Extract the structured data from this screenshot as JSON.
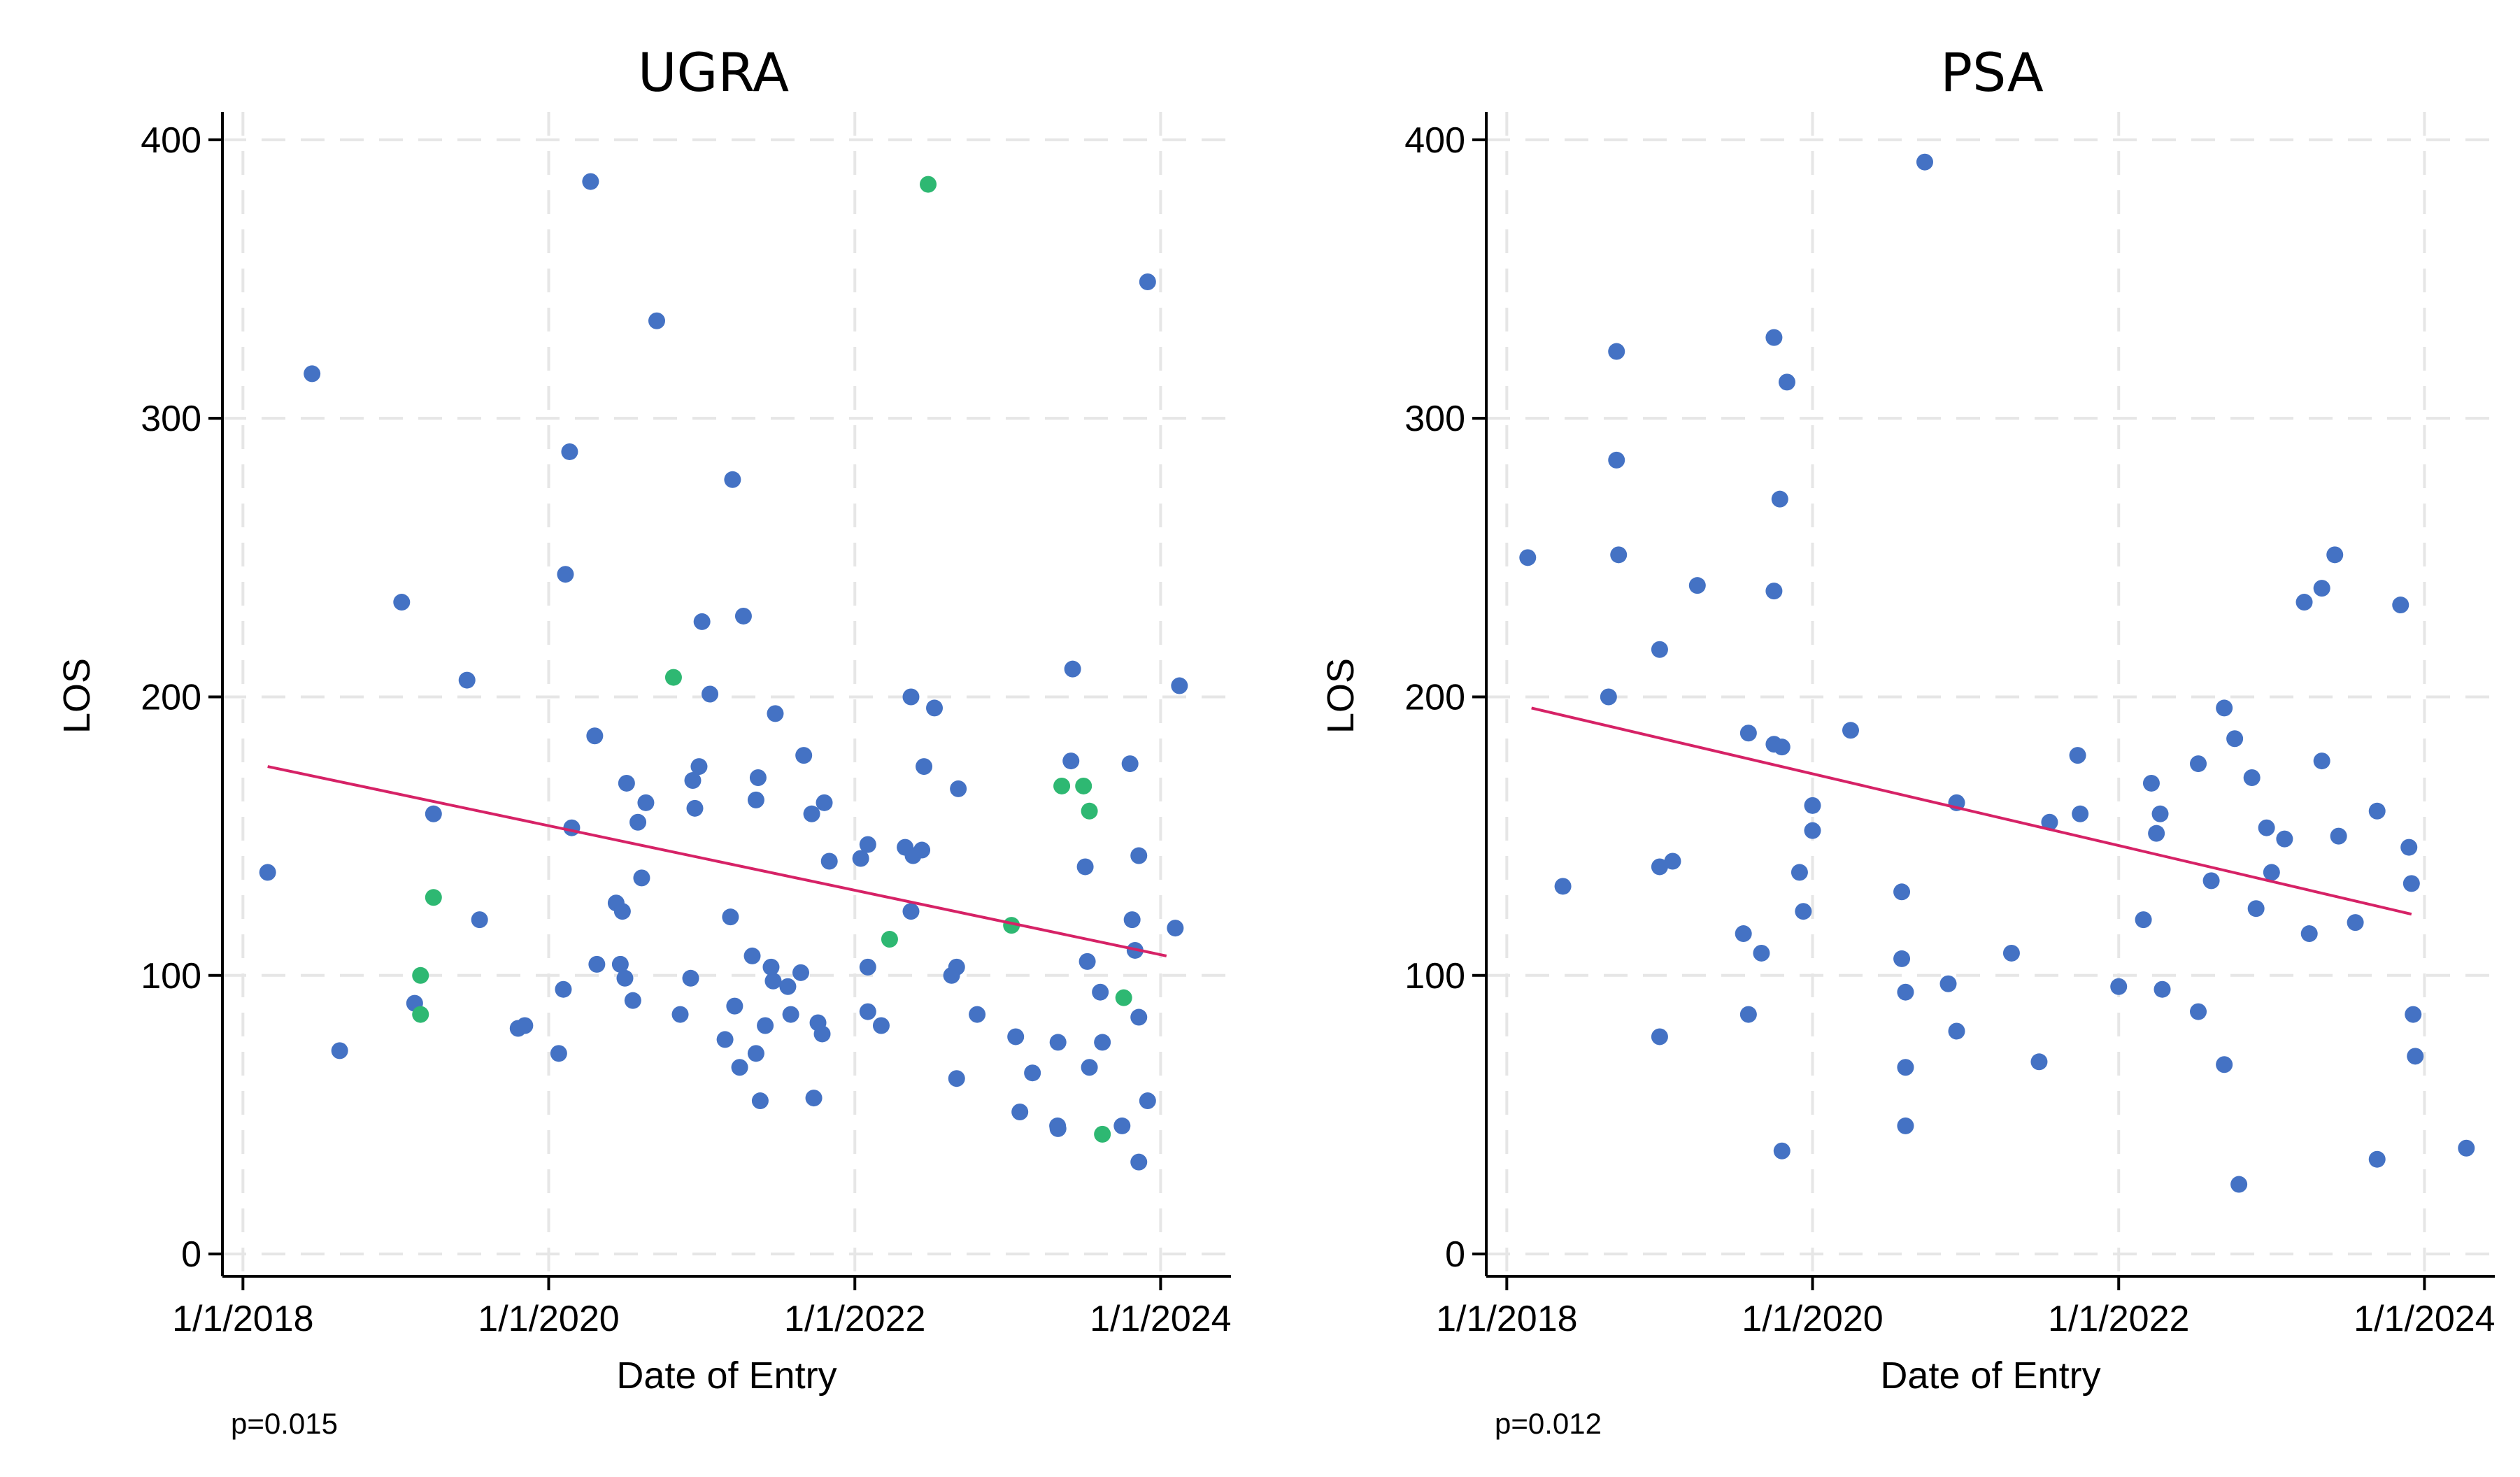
{
  "chart_data": [
    {
      "type": "scatter",
      "title": "UGRA",
      "xlabel": "Date of Entry",
      "ylabel": "LOS",
      "xlim": [
        "2017-11-13",
        "2024-06-17"
      ],
      "ylim": [
        -8,
        410
      ],
      "x_ticks": [
        {
          "date": "2018-01-01",
          "label": "1/1/2018"
        },
        {
          "date": "2020-01-01",
          "label": "1/1/2020"
        },
        {
          "date": "2022-01-01",
          "label": "1/1/2022"
        },
        {
          "date": "2024-01-01",
          "label": "1/1/2024"
        }
      ],
      "y_ticks": [
        0,
        100,
        200,
        300,
        400
      ],
      "grid": true,
      "annotation": "p=0.015",
      "colors": {
        "blue": "#4472C4",
        "green": "#2EB872",
        "fit_line": "#D62266"
      },
      "fit_line": {
        "x": [
          "2018-03-01",
          "2024-01-15"
        ],
        "y": [
          175,
          107
        ]
      },
      "series": [
        {
          "color": "#4472C4",
          "points": [
            {
              "x": "2018-03-01",
              "y": 137
            },
            {
              "x": "2018-06-15",
              "y": 316
            },
            {
              "x": "2018-08-20",
              "y": 73
            },
            {
              "x": "2019-01-15",
              "y": 234
            },
            {
              "x": "2019-02-15",
              "y": 90
            },
            {
              "x": "2019-04-01",
              "y": 158
            },
            {
              "x": "2019-06-20",
              "y": 206
            },
            {
              "x": "2019-07-20",
              "y": 120
            },
            {
              "x": "2019-10-20",
              "y": 81
            },
            {
              "x": "2019-11-05",
              "y": 82
            },
            {
              "x": "2020-01-25",
              "y": 72
            },
            {
              "x": "2020-02-05",
              "y": 95
            },
            {
              "x": "2020-02-10",
              "y": 244
            },
            {
              "x": "2020-02-20",
              "y": 288
            },
            {
              "x": "2020-02-25",
              "y": 153
            },
            {
              "x": "2020-04-10",
              "y": 385
            },
            {
              "x": "2020-04-20",
              "y": 186
            },
            {
              "x": "2020-04-25",
              "y": 104
            },
            {
              "x": "2020-06-10",
              "y": 126
            },
            {
              "x": "2020-06-20",
              "y": 104
            },
            {
              "x": "2020-06-25",
              "y": 123
            },
            {
              "x": "2020-07-01",
              "y": 99
            },
            {
              "x": "2020-07-05",
              "y": 169
            },
            {
              "x": "2020-07-20",
              "y": 91
            },
            {
              "x": "2020-08-01",
              "y": 155
            },
            {
              "x": "2020-08-10",
              "y": 135
            },
            {
              "x": "2020-08-20",
              "y": 162
            },
            {
              "x": "2020-09-15",
              "y": 335
            },
            {
              "x": "2020-11-10",
              "y": 86
            },
            {
              "x": "2020-12-05",
              "y": 99
            },
            {
              "x": "2020-12-10",
              "y": 170
            },
            {
              "x": "2020-12-15",
              "y": 160
            },
            {
              "x": "2020-12-25",
              "y": 175
            },
            {
              "x": "2021-01-01",
              "y": 227
            },
            {
              "x": "2021-01-20",
              "y": 201
            },
            {
              "x": "2021-02-25",
              "y": 77
            },
            {
              "x": "2021-03-10",
              "y": 121
            },
            {
              "x": "2021-03-15",
              "y": 278
            },
            {
              "x": "2021-03-20",
              "y": 89
            },
            {
              "x": "2021-04-01",
              "y": 67
            },
            {
              "x": "2021-04-10",
              "y": 229
            },
            {
              "x": "2021-05-01",
              "y": 107
            },
            {
              "x": "2021-05-10",
              "y": 72
            },
            {
              "x": "2021-05-10",
              "y": 163
            },
            {
              "x": "2021-05-15",
              "y": 171
            },
            {
              "x": "2021-05-20",
              "y": 55
            },
            {
              "x": "2021-06-01",
              "y": 82
            },
            {
              "x": "2021-06-15",
              "y": 103
            },
            {
              "x": "2021-06-20",
              "y": 98
            },
            {
              "x": "2021-06-25",
              "y": 194
            },
            {
              "x": "2021-07-25",
              "y": 96
            },
            {
              "x": "2021-08-01",
              "y": 86
            },
            {
              "x": "2021-08-25",
              "y": 101
            },
            {
              "x": "2021-09-01",
              "y": 179
            },
            {
              "x": "2021-09-20",
              "y": 158
            },
            {
              "x": "2021-09-25",
              "y": 56
            },
            {
              "x": "2021-10-05",
              "y": 83
            },
            {
              "x": "2021-10-15",
              "y": 79
            },
            {
              "x": "2021-10-20",
              "y": 162
            },
            {
              "x": "2021-11-01",
              "y": 141
            },
            {
              "x": "2022-01-15",
              "y": 142
            },
            {
              "x": "2022-02-01",
              "y": 147
            },
            {
              "x": "2022-02-01",
              "y": 103
            },
            {
              "x": "2022-02-01",
              "y": 87
            },
            {
              "x": "2022-03-05",
              "y": 82
            },
            {
              "x": "2022-05-01",
              "y": 146
            },
            {
              "x": "2022-05-15",
              "y": 200
            },
            {
              "x": "2022-05-15",
              "y": 123
            },
            {
              "x": "2022-05-20",
              "y": 143
            },
            {
              "x": "2022-06-10",
              "y": 145
            },
            {
              "x": "2022-06-15",
              "y": 175
            },
            {
              "x": "2022-07-10",
              "y": 196
            },
            {
              "x": "2022-08-20",
              "y": 100
            },
            {
              "x": "2022-09-01",
              "y": 103
            },
            {
              "x": "2022-09-01",
              "y": 63
            },
            {
              "x": "2022-09-05",
              "y": 167
            },
            {
              "x": "2022-10-20",
              "y": 86
            },
            {
              "x": "2023-01-20",
              "y": 78
            },
            {
              "x": "2023-01-30",
              "y": 51
            },
            {
              "x": "2023-03-01",
              "y": 65
            },
            {
              "x": "2023-04-30",
              "y": 46
            },
            {
              "x": "2023-05-01",
              "y": 45
            },
            {
              "x": "2023-05-01",
              "y": 76
            },
            {
              "x": "2023-06-01",
              "y": 177
            },
            {
              "x": "2023-06-05",
              "y": 210
            },
            {
              "x": "2023-07-05",
              "y": 139
            },
            {
              "x": "2023-07-10",
              "y": 105
            },
            {
              "x": "2023-07-15",
              "y": 67
            },
            {
              "x": "2023-08-10",
              "y": 94
            },
            {
              "x": "2023-08-15",
              "y": 76
            },
            {
              "x": "2023-10-01",
              "y": 46
            },
            {
              "x": "2023-10-20",
              "y": 176
            },
            {
              "x": "2023-10-25",
              "y": 120
            },
            {
              "x": "2023-11-01",
              "y": 109
            },
            {
              "x": "2023-11-10",
              "y": 143
            },
            {
              "x": "2023-11-10",
              "y": 85
            },
            {
              "x": "2023-11-10",
              "y": 33
            },
            {
              "x": "2023-12-01",
              "y": 349
            },
            {
              "x": "2023-12-01",
              "y": 55
            },
            {
              "x": "2024-02-05",
              "y": 117
            },
            {
              "x": "2024-02-15",
              "y": 204
            }
          ]
        },
        {
          "color": "#2EB872",
          "points": [
            {
              "x": "2019-03-01",
              "y": 100
            },
            {
              "x": "2019-03-01",
              "y": 86
            },
            {
              "x": "2019-04-01",
              "y": 128
            },
            {
              "x": "2020-10-25",
              "y": 207
            },
            {
              "x": "2022-03-25",
              "y": 113
            },
            {
              "x": "2022-06-25",
              "y": 384
            },
            {
              "x": "2023-01-10",
              "y": 118
            },
            {
              "x": "2023-05-10",
              "y": 168
            },
            {
              "x": "2023-07-01",
              "y": 168
            },
            {
              "x": "2023-07-15",
              "y": 159
            },
            {
              "x": "2023-08-15",
              "y": 43
            },
            {
              "x": "2023-10-05",
              "y": 92
            }
          ]
        }
      ]
    },
    {
      "type": "scatter",
      "title": "PSA",
      "xlabel": "Date of Entry",
      "ylabel": "LOS",
      "xlim": [
        "2017-11-13",
        "2024-06-17"
      ],
      "ylim": [
        -8,
        410
      ],
      "x_ticks": [
        {
          "date": "2018-01-01",
          "label": "1/1/2018"
        },
        {
          "date": "2020-01-01",
          "label": "1/1/2020"
        },
        {
          "date": "2022-01-01",
          "label": "1/1/2022"
        },
        {
          "date": "2024-01-01",
          "label": "1/1/2024"
        }
      ],
      "y_ticks": [
        0,
        100,
        200,
        300,
        400
      ],
      "grid": true,
      "annotation": "p=0.012",
      "colors": {
        "blue": "#4472C4",
        "fit_line": "#D62266"
      },
      "fit_line": {
        "x": [
          "2018-03-01",
          "2023-12-01"
        ],
        "y": [
          196,
          122
        ]
      },
      "series": [
        {
          "color": "#4472C4",
          "points": [
            {
              "x": "2018-02-20",
              "y": 250
            },
            {
              "x": "2018-05-15",
              "y": 132
            },
            {
              "x": "2018-09-01",
              "y": 200
            },
            {
              "x": "2018-09-20",
              "y": 324
            },
            {
              "x": "2018-09-20",
              "y": 285
            },
            {
              "x": "2018-09-25",
              "y": 251
            },
            {
              "x": "2019-01-01",
              "y": 217
            },
            {
              "x": "2019-01-01",
              "y": 139
            },
            {
              "x": "2019-01-01",
              "y": 78
            },
            {
              "x": "2019-02-01",
              "y": 141
            },
            {
              "x": "2019-04-01",
              "y": 240
            },
            {
              "x": "2019-07-20",
              "y": 115
            },
            {
              "x": "2019-08-01",
              "y": 187
            },
            {
              "x": "2019-08-01",
              "y": 86
            },
            {
              "x": "2019-09-01",
              "y": 108
            },
            {
              "x": "2019-10-01",
              "y": 329
            },
            {
              "x": "2019-10-01",
              "y": 238
            },
            {
              "x": "2019-10-01",
              "y": 183
            },
            {
              "x": "2019-10-15",
              "y": 271
            },
            {
              "x": "2019-10-20",
              "y": 182
            },
            {
              "x": "2019-10-20",
              "y": 37
            },
            {
              "x": "2019-11-01",
              "y": 313
            },
            {
              "x": "2019-12-01",
              "y": 137
            },
            {
              "x": "2019-12-10",
              "y": 123
            },
            {
              "x": "2020-01-01",
              "y": 161
            },
            {
              "x": "2020-01-01",
              "y": 152
            },
            {
              "x": "2020-04-01",
              "y": 188
            },
            {
              "x": "2020-08-01",
              "y": 106
            },
            {
              "x": "2020-08-01",
              "y": 130
            },
            {
              "x": "2020-08-10",
              "y": 94
            },
            {
              "x": "2020-08-10",
              "y": 67
            },
            {
              "x": "2020-08-10",
              "y": 46
            },
            {
              "x": "2020-09-25",
              "y": 392
            },
            {
              "x": "2020-11-20",
              "y": 97
            },
            {
              "x": "2020-12-10",
              "y": 162
            },
            {
              "x": "2020-12-10",
              "y": 80
            },
            {
              "x": "2021-04-20",
              "y": 108
            },
            {
              "x": "2021-06-25",
              "y": 69
            },
            {
              "x": "2021-07-20",
              "y": 155
            },
            {
              "x": "2021-09-25",
              "y": 179
            },
            {
              "x": "2021-10-01",
              "y": 158
            },
            {
              "x": "2022-01-01",
              "y": 96
            },
            {
              "x": "2022-03-01",
              "y": 120
            },
            {
              "x": "2022-03-20",
              "y": 169
            },
            {
              "x": "2022-04-01",
              "y": 151
            },
            {
              "x": "2022-04-10",
              "y": 158
            },
            {
              "x": "2022-04-15",
              "y": 95
            },
            {
              "x": "2022-07-10",
              "y": 176
            },
            {
              "x": "2022-07-10",
              "y": 87
            },
            {
              "x": "2022-08-10",
              "y": 134
            },
            {
              "x": "2022-09-10",
              "y": 196
            },
            {
              "x": "2022-09-10",
              "y": 68
            },
            {
              "x": "2022-10-05",
              "y": 185
            },
            {
              "x": "2022-10-15",
              "y": 25
            },
            {
              "x": "2022-11-15",
              "y": 171
            },
            {
              "x": "2022-11-25",
              "y": 124
            },
            {
              "x": "2022-12-20",
              "y": 153
            },
            {
              "x": "2023-01-01",
              "y": 137
            },
            {
              "x": "2023-02-01",
              "y": 149
            },
            {
              "x": "2023-03-20",
              "y": 234
            },
            {
              "x": "2023-04-01",
              "y": 115
            },
            {
              "x": "2023-05-01",
              "y": 239
            },
            {
              "x": "2023-05-01",
              "y": 177
            },
            {
              "x": "2023-06-01",
              "y": 251
            },
            {
              "x": "2023-06-10",
              "y": 150
            },
            {
              "x": "2023-07-20",
              "y": 119
            },
            {
              "x": "2023-09-10",
              "y": 34
            },
            {
              "x": "2023-09-10",
              "y": 159
            },
            {
              "x": "2023-11-05",
              "y": 233
            },
            {
              "x": "2023-11-25",
              "y": 146
            },
            {
              "x": "2023-12-01",
              "y": 133
            },
            {
              "x": "2023-12-05",
              "y": 86
            },
            {
              "x": "2023-12-10",
              "y": 71
            },
            {
              "x": "2024-04-10",
              "y": 38
            }
          ]
        }
      ]
    }
  ]
}
